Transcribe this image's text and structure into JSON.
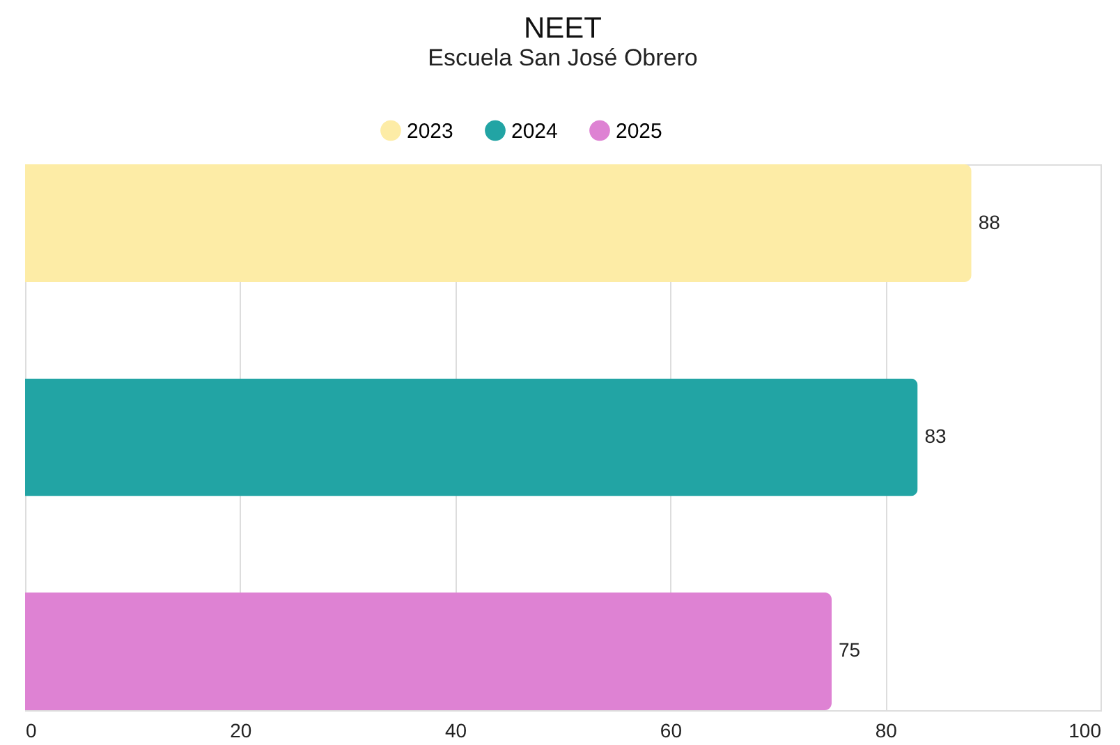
{
  "chart_data": {
    "type": "bar",
    "orientation": "horizontal",
    "title": "NEET",
    "subtitle": "Escuela San José Obrero",
    "categories": [
      null,
      null,
      null
    ],
    "series": [
      {
        "name": "2023",
        "color": "#fdeca6",
        "values": [
          88,
          null,
          null
        ]
      },
      {
        "name": "2024",
        "color": "#22a4a4",
        "values": [
          null,
          83,
          null
        ]
      },
      {
        "name": "2025",
        "color": "#de82d3",
        "values": [
          null,
          null,
          75
        ]
      }
    ],
    "xlim": [
      0,
      100
    ],
    "xticks": [
      0,
      20,
      40,
      60,
      80,
      100
    ],
    "grid": "x",
    "legend": "top",
    "data_labels": true
  }
}
